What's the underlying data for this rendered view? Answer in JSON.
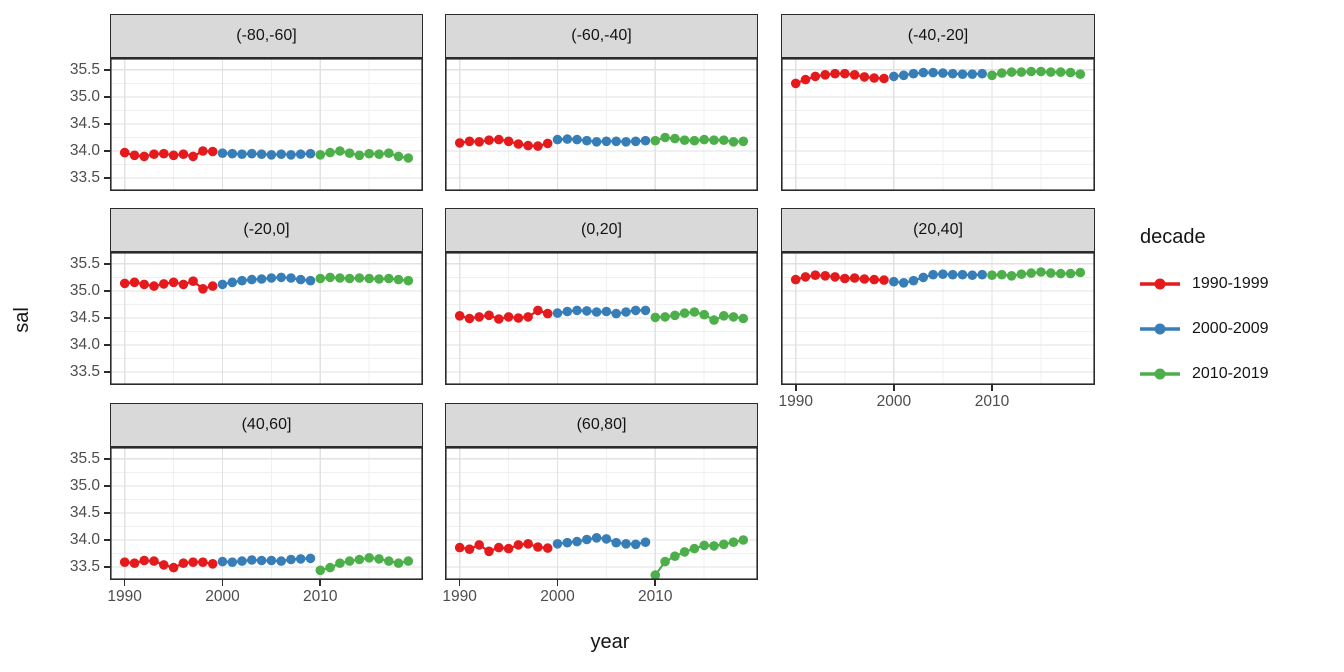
{
  "chart_data": {
    "type": "scatter",
    "title": "",
    "xlabel": "year",
    "ylabel": "sal",
    "legend_title": "decade",
    "legend_position": "right",
    "grid": true,
    "xlim": [
      1988.5,
      2020.5
    ],
    "ylim": [
      33.26,
      35.72
    ],
    "x_ticks": [
      1990,
      2000,
      2010
    ],
    "x_minor": [
      1995,
      2005,
      2015
    ],
    "y_ticks": [
      35.5,
      35.0,
      34.5,
      34.0,
      33.5
    ],
    "y_minor": [
      35.25,
      34.75,
      34.25,
      33.75
    ],
    "series": [
      {
        "name": "1990-1999",
        "color": "#E41A1C",
        "x": [
          1990,
          1991,
          1992,
          1993,
          1994,
          1995,
          1996,
          1997,
          1998,
          1999
        ]
      },
      {
        "name": "2000-2009",
        "color": "#377EB8",
        "x": [
          2000,
          2001,
          2002,
          2003,
          2004,
          2005,
          2006,
          2007,
          2008,
          2009
        ]
      },
      {
        "name": "2010-2019",
        "color": "#4DAF4A",
        "x": [
          2010,
          2011,
          2012,
          2013,
          2014,
          2015,
          2016,
          2017,
          2018,
          2019
        ]
      }
    ],
    "facets": [
      {
        "label": "(-80,-60]",
        "values": [
          [
            33.97,
            33.92,
            33.9,
            33.94,
            33.95,
            33.92,
            33.94,
            33.9,
            34.0,
            33.99
          ],
          [
            33.96,
            33.95,
            33.94,
            33.95,
            33.94,
            33.93,
            33.94,
            33.93,
            33.94,
            33.95
          ],
          [
            33.93,
            33.97,
            34.0,
            33.96,
            33.92,
            33.95,
            33.94,
            33.96,
            33.9,
            33.87
          ]
        ]
      },
      {
        "label": "(-60,-40]",
        "values": [
          [
            34.15,
            34.18,
            34.17,
            34.2,
            34.21,
            34.18,
            34.13,
            34.1,
            34.09,
            34.14
          ],
          [
            34.21,
            34.22,
            34.21,
            34.19,
            34.17,
            34.18,
            34.18,
            34.17,
            34.18,
            34.19
          ],
          [
            34.19,
            34.25,
            34.23,
            34.2,
            34.19,
            34.21,
            34.2,
            34.2,
            34.17,
            34.18
          ]
        ]
      },
      {
        "label": "(-40,-20]",
        "values": [
          [
            35.25,
            35.32,
            35.38,
            35.41,
            35.43,
            35.43,
            35.41,
            35.37,
            35.35,
            35.34
          ],
          [
            35.38,
            35.4,
            35.43,
            35.45,
            35.45,
            35.44,
            35.43,
            35.42,
            35.42,
            35.43
          ],
          [
            35.4,
            35.44,
            35.46,
            35.46,
            35.47,
            35.47,
            35.46,
            35.46,
            35.45,
            35.42
          ]
        ]
      },
      {
        "label": "(-20,0]",
        "values": [
          [
            35.14,
            35.16,
            35.12,
            35.09,
            35.13,
            35.16,
            35.12,
            35.18,
            35.04,
            35.09
          ],
          [
            35.12,
            35.16,
            35.19,
            35.21,
            35.22,
            35.24,
            35.25,
            35.24,
            35.21,
            35.19
          ],
          [
            35.23,
            35.25,
            35.24,
            35.23,
            35.24,
            35.23,
            35.22,
            35.23,
            35.21,
            35.19
          ]
        ]
      },
      {
        "label": "(0,20]",
        "values": [
          [
            34.54,
            34.49,
            34.52,
            34.55,
            34.48,
            34.52,
            34.5,
            34.52,
            34.64,
            34.58
          ],
          [
            34.59,
            34.62,
            34.64,
            34.63,
            34.61,
            34.62,
            34.58,
            34.61,
            34.64,
            34.64
          ],
          [
            34.51,
            34.52,
            34.55,
            34.59,
            34.61,
            34.56,
            34.46,
            34.54,
            34.52,
            34.49
          ]
        ]
      },
      {
        "label": "(20,40]",
        "values": [
          [
            35.21,
            35.26,
            35.29,
            35.28,
            35.26,
            35.23,
            35.24,
            35.22,
            35.21,
            35.2
          ],
          [
            35.17,
            35.15,
            35.19,
            35.25,
            35.3,
            35.31,
            35.3,
            35.3,
            35.29,
            35.3
          ],
          [
            35.29,
            35.3,
            35.28,
            35.31,
            35.33,
            35.35,
            35.33,
            35.32,
            35.32,
            35.34
          ]
        ]
      },
      {
        "label": "(40,60]",
        "values": [
          [
            33.59,
            33.57,
            33.62,
            33.61,
            33.54,
            33.49,
            33.57,
            33.59,
            33.59,
            33.56
          ],
          [
            33.6,
            33.59,
            33.61,
            33.63,
            33.62,
            33.62,
            33.61,
            33.64,
            33.65,
            33.66
          ],
          [
            33.44,
            33.49,
            33.57,
            33.61,
            33.64,
            33.67,
            33.65,
            33.61,
            33.57,
            33.61
          ]
        ]
      },
      {
        "label": "(60,80]",
        "values": [
          [
            33.86,
            33.83,
            33.91,
            33.79,
            33.86,
            33.84,
            33.91,
            33.93,
            33.87,
            33.85
          ],
          [
            33.93,
            33.95,
            33.97,
            34.01,
            34.04,
            34.02,
            33.95,
            33.93,
            33.92,
            33.96
          ],
          [
            33.35,
            33.6,
            33.7,
            33.78,
            33.84,
            33.9,
            33.89,
            33.92,
            33.96,
            34.0
          ]
        ]
      }
    ]
  }
}
